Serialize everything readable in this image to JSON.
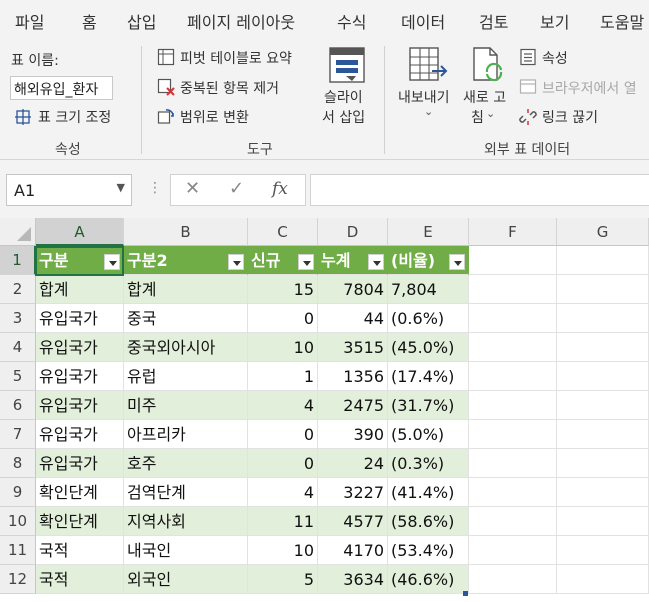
{
  "ribbon_tabs": [
    "파일",
    "홈",
    "삽입",
    "페이지 레이아웃",
    "수식",
    "데이터",
    "검토",
    "보기",
    "도움말"
  ],
  "ribbon": {
    "properties": {
      "table_name_label": "표 이름:",
      "table_name_value": "해외유입_환자",
      "resize_label": "표 크기 조정",
      "group_label": "속성"
    },
    "tools": {
      "pivot_label": "피벗 테이블로 요약",
      "remove_dup_label": "중복된 항목 제거",
      "convert_range_label": "범위로 변환",
      "slicer_line1": "슬라이",
      "slicer_line2": "서 삽입",
      "group_label": "도구"
    },
    "external": {
      "export_label": "내보내기",
      "refresh_line1": "새로 고",
      "refresh_line2": "침",
      "properties_label": "속성",
      "browser_label": "브라우저에서 열",
      "unlink_label": "링크 끊기",
      "group_label": "외부 표 데이터"
    }
  },
  "formula_bar": {
    "name_box": "A1",
    "cancel": "✕",
    "enter": "✓",
    "fx": "fx",
    "value": ""
  },
  "sheet": {
    "columns": [
      "A",
      "B",
      "C",
      "D",
      "E",
      "F",
      "G"
    ],
    "rows": [
      "1",
      "2",
      "3",
      "4",
      "5",
      "6",
      "7",
      "8",
      "9",
      "10",
      "11",
      "12"
    ],
    "table_headers": [
      "구분",
      "구분2",
      "신규",
      "누계",
      "(비율)"
    ],
    "data": [
      [
        "합계",
        "합계",
        "15",
        "7804",
        "7,804"
      ],
      [
        "유입국가",
        "중국",
        "0",
        "44",
        "(0.6%)"
      ],
      [
        "유입국가",
        "중국외아시아",
        "10",
        "3515",
        "(45.0%)"
      ],
      [
        "유입국가",
        "유럽",
        "1",
        "1356",
        "(17.4%)"
      ],
      [
        "유입국가",
        "미주",
        "4",
        "2475",
        "(31.7%)"
      ],
      [
        "유입국가",
        "아프리카",
        "0",
        "390",
        "(5.0%)"
      ],
      [
        "유입국가",
        "호주",
        "0",
        "24",
        "(0.3%)"
      ],
      [
        "확인단계",
        "검역단계",
        "4",
        "3227",
        "(41.4%)"
      ],
      [
        "확인단계",
        "지역사회",
        "11",
        "4577",
        "(58.6%)"
      ],
      [
        "국적",
        "내국인",
        "10",
        "4170",
        "(53.4%)"
      ],
      [
        "국적",
        "외국인",
        "5",
        "3634",
        "(46.6%)"
      ]
    ]
  },
  "colors": {
    "table_header": "#70ad47",
    "band": "#e2efda",
    "selection": "#217346"
  }
}
